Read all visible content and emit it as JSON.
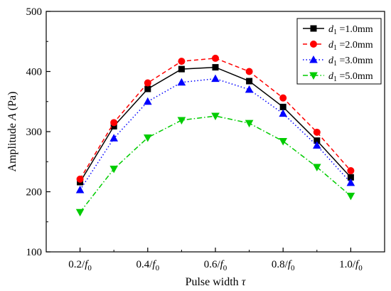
{
  "chart_data": {
    "type": "line",
    "xlabel": "Pulse width",
    "xlabel_symbol": "τ",
    "ylabel": "Amplitude",
    "ylabel_symbol": "A",
    "ylabel_unit": "(Pa)",
    "x": [
      0.2,
      0.3,
      0.4,
      0.5,
      0.6,
      0.7,
      0.8,
      0.9,
      1.0
    ],
    "xlim": [
      0.1,
      1.1
    ],
    "xticks": [
      {
        "value": 0.2,
        "label": "0.2/",
        "sym": "f",
        "sub": "0"
      },
      {
        "value": 0.4,
        "label": "0.4/",
        "sym": "f",
        "sub": "0"
      },
      {
        "value": 0.6,
        "label": "0.6/",
        "sym": "f",
        "sub": "0"
      },
      {
        "value": 0.8,
        "label": "0.8/",
        "sym": "f",
        "sub": "0"
      },
      {
        "value": 1.0,
        "label": "1.0/",
        "sym": "f",
        "sub": "0"
      }
    ],
    "ylim": [
      100,
      500
    ],
    "yticks": [
      {
        "value": 100,
        "label": "100"
      },
      {
        "value": 200,
        "label": "200"
      },
      {
        "value": 300,
        "label": "300"
      },
      {
        "value": 400,
        "label": "400"
      },
      {
        "value": 500,
        "label": "500"
      }
    ],
    "grid": false,
    "legend_position": "top-right",
    "series": [
      {
        "name_sym": "d",
        "name_sub": "1",
        "name_rest": "=1.0mm",
        "color": "#000000",
        "dash": "solid",
        "marker": "square",
        "values": [
          216,
          309,
          371,
          404,
          407,
          384,
          341,
          285,
          224
        ]
      },
      {
        "name_sym": "d",
        "name_sub": "1",
        "name_rest": "=2.0mm",
        "color": "#ff0000",
        "dash": "dash",
        "marker": "circle",
        "values": [
          221,
          315,
          381,
          417,
          422,
          400,
          356,
          299,
          235
        ]
      },
      {
        "name_sym": "d",
        "name_sub": "1",
        "name_rest": "=3.0mm",
        "color": "#0000ff",
        "dash": "dot",
        "marker": "triangle-up",
        "values": [
          203,
          289,
          350,
          382,
          388,
          370,
          330,
          277,
          215
        ]
      },
      {
        "name_sym": "d",
        "name_sub": "1",
        "name_rest": "=5.0mm",
        "color": "#00cc00",
        "dash": "dashdot",
        "marker": "triangle-down",
        "values": [
          166,
          238,
          290,
          319,
          326,
          314,
          284,
          241,
          193
        ]
      }
    ]
  }
}
